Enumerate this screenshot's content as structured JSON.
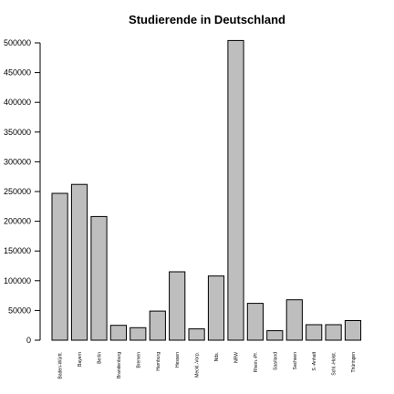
{
  "chart_data": {
    "type": "bar",
    "title": "Studierende in Deutschland",
    "xlabel": "",
    "ylabel": "",
    "categories": [
      "Baden-Württ.",
      "Bayern",
      "Berlin",
      "Brandenburg",
      "Bremen",
      "Hamburg",
      "Hessen",
      "Meckl.-Vorp.",
      "Nds.",
      "NRW",
      "Rhein.-Pf.",
      "Saarland",
      "Sachsen",
      "S.-Anhalt",
      "Schl.-Holst.",
      "Thüringen"
    ],
    "values": [
      247000,
      262000,
      208000,
      25000,
      21000,
      49000,
      115000,
      19000,
      108000,
      504000,
      62000,
      16000,
      68000,
      26000,
      26000,
      33000
    ],
    "ylim": [
      0,
      500000
    ],
    "yticks": [
      0,
      50000,
      100000,
      150000,
      200000,
      250000,
      300000,
      350000,
      400000,
      450000,
      500000
    ],
    "ytick_labels": [
      "0",
      "50000",
      "100000",
      "150000",
      "200000",
      "250000",
      "300000",
      "350000",
      "400000",
      "450000",
      "500000"
    ],
    "grid": false,
    "legend": "none",
    "colors": {
      "bar_fill": "#bebebe",
      "bar_stroke": "#000000",
      "axis": "#000000",
      "background": "#ffffff"
    }
  }
}
